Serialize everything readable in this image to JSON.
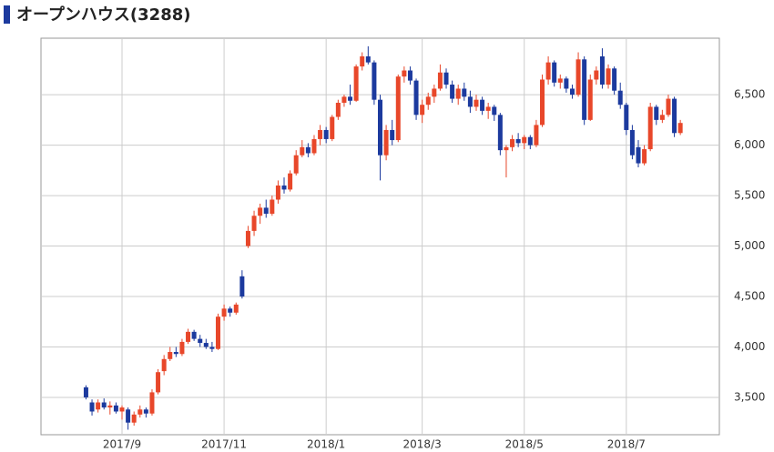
{
  "chart_data": {
    "type": "candlestick",
    "title": "オープンハウス(3288)",
    "up_color": "#e8472a",
    "down_color": "#1c3a9e",
    "grid": true,
    "ylim": [
      3130,
      7060
    ],
    "yticks": [
      {
        "value": 3500,
        "label": "3,500"
      },
      {
        "value": 4000,
        "label": "4,000"
      },
      {
        "value": 4500,
        "label": "4,500"
      },
      {
        "value": 5000,
        "label": "5,000"
      },
      {
        "value": 5500,
        "label": "5,500"
      },
      {
        "value": 6000,
        "label": "6,000"
      },
      {
        "value": 6500,
        "label": "6,500"
      }
    ],
    "categories": [
      null,
      null,
      null,
      null,
      null,
      null,
      null,
      null,
      null,
      null,
      null,
      null,
      null,
      "2017/9",
      null,
      null,
      null,
      null,
      null,
      null,
      null,
      null,
      null,
      null,
      null,
      null,
      null,
      null,
      null,
      null,
      "2017/11",
      null,
      null,
      null,
      null,
      null,
      null,
      null,
      null,
      null,
      null,
      null,
      null,
      null,
      null,
      null,
      null,
      "2018/1",
      null,
      null,
      null,
      null,
      null,
      null,
      null,
      null,
      null,
      null,
      null,
      null,
      null,
      null,
      null,
      "2018/3",
      null,
      null,
      null,
      null,
      null,
      null,
      null,
      null,
      null,
      null,
      null,
      null,
      null,
      null,
      null,
      null,
      "2018/5",
      null,
      null,
      null,
      null,
      null,
      null,
      null,
      null,
      null,
      null,
      null,
      null,
      null,
      null,
      null,
      null,
      "2018/7",
      null,
      null,
      null,
      null,
      null,
      null,
      null,
      null,
      null,
      null,
      null,
      null,
      null,
      null,
      null
    ],
    "open": [
      null,
      null,
      null,
      null,
      null,
      null,
      null,
      3600,
      3450,
      3380,
      3450,
      3400,
      3420,
      3360,
      3380,
      3250,
      3330,
      3380,
      3340,
      3550,
      3760,
      3880,
      3950,
      3930,
      4050,
      4150,
      4080,
      4040,
      4000,
      3980,
      4300,
      4380,
      4340,
      4700,
      5000,
      5150,
      5300,
      5380,
      5320,
      5460,
      5600,
      5560,
      5720,
      5900,
      5980,
      5920,
      6060,
      6150,
      6060,
      6280,
      6420,
      6480,
      6440,
      6780,
      6880,
      6820,
      6450,
      5900,
      6150,
      6050,
      6680,
      6740,
      6640,
      6300,
      6400,
      6480,
      6560,
      6720,
      6600,
      6460,
      6560,
      6480,
      6380,
      6450,
      6340,
      6380,
      6300,
      5950,
      5980,
      6060,
      6020,
      6080,
      6000,
      6200,
      6650,
      6820,
      6620,
      6660,
      6560,
      6500,
      6850,
      6250,
      6650,
      6880,
      6600,
      6760,
      6540,
      6400,
      6150,
      5980,
      5820,
      5960,
      6380,
      6250,
      6300,
      6460,
      6120,
      null,
      null,
      null,
      null,
      null,
      null
    ],
    "high": [
      null,
      null,
      null,
      null,
      null,
      null,
      null,
      3620,
      3480,
      3480,
      3490,
      3460,
      3450,
      3420,
      3400,
      3360,
      3420,
      3400,
      3580,
      3780,
      3920,
      4000,
      4000,
      4080,
      4180,
      4170,
      4120,
      4080,
      4050,
      4330,
      4420,
      4400,
      4440,
      4760,
      5200,
      5350,
      5420,
      5460,
      5500,
      5650,
      5680,
      5750,
      5950,
      6050,
      6020,
      6100,
      6200,
      6180,
      6300,
      6450,
      6500,
      6600,
      6800,
      6920,
      6980,
      6840,
      6500,
      6200,
      6250,
      6700,
      6780,
      6780,
      6660,
      6450,
      6520,
      6600,
      6800,
      6760,
      6640,
      6600,
      6620,
      6540,
      6500,
      6480,
      6420,
      6400,
      6320,
      6000,
      6100,
      6120,
      6100,
      6100,
      6250,
      6700,
      6880,
      6840,
      6700,
      6680,
      6600,
      6920,
      6880,
      6700,
      6780,
      6960,
      6800,
      6780,
      6620,
      6420,
      6200,
      6050,
      6000,
      6420,
      6400,
      6350,
      6500,
      6480,
      6250,
      null,
      null,
      null,
      null,
      null,
      null
    ],
    "low": [
      null,
      null,
      null,
      null,
      null,
      null,
      null,
      3480,
      3320,
      3350,
      3380,
      3330,
      3340,
      3280,
      3180,
      3220,
      3300,
      3300,
      3320,
      3530,
      3720,
      3860,
      3900,
      3910,
      4030,
      4060,
      4000,
      3980,
      3950,
      3970,
      4260,
      4300,
      4320,
      4480,
      4980,
      5100,
      5220,
      5280,
      5300,
      5420,
      5520,
      5540,
      5700,
      5880,
      5880,
      5900,
      6000,
      6020,
      6040,
      6250,
      6380,
      6400,
      6430,
      6740,
      6800,
      6400,
      5650,
      5850,
      6000,
      6030,
      6620,
      6600,
      6250,
      6220,
      6350,
      6420,
      6540,
      6560,
      6420,
      6400,
      6440,
      6320,
      6340,
      6300,
      6260,
      6240,
      5900,
      5680,
      5940,
      5980,
      5960,
      5960,
      5980,
      6180,
      6600,
      6580,
      6560,
      6520,
      6460,
      6480,
      6200,
      6240,
      6600,
      6560,
      6560,
      6500,
      6360,
      6100,
      5860,
      5780,
      5800,
      5940,
      6200,
      6220,
      6280,
      6080,
      6100,
      null,
      null,
      null,
      null,
      null,
      null
    ],
    "close": [
      null,
      null,
      null,
      null,
      null,
      null,
      null,
      3500,
      3360,
      3450,
      3400,
      3420,
      3360,
      3400,
      3250,
      3330,
      3380,
      3340,
      3550,
      3750,
      3880,
      3950,
      3930,
      4050,
      4150,
      4080,
      4040,
      4000,
      3980,
      4300,
      4380,
      4340,
      4420,
      4500,
      5150,
      5300,
      5380,
      5320,
      5460,
      5600,
      5560,
      5720,
      5900,
      5980,
      5920,
      6060,
      6150,
      6060,
      6280,
      6420,
      6480,
      6440,
      6780,
      6880,
      6820,
      6450,
      5900,
      6150,
      6050,
      6680,
      6740,
      6640,
      6300,
      6400,
      6480,
      6560,
      6720,
      6600,
      6460,
      6560,
      6480,
      6380,
      6450,
      6340,
      6380,
      6300,
      5950,
      5980,
      6060,
      6020,
      6080,
      6000,
      6200,
      6650,
      6820,
      6620,
      6660,
      6560,
      6500,
      6850,
      6250,
      6650,
      6740,
      6600,
      6760,
      6540,
      6400,
      6150,
      5900,
      5820,
      5960,
      6380,
      6250,
      6300,
      6460,
      6120,
      6220,
      null,
      null,
      null,
      null,
      null,
      null
    ]
  }
}
